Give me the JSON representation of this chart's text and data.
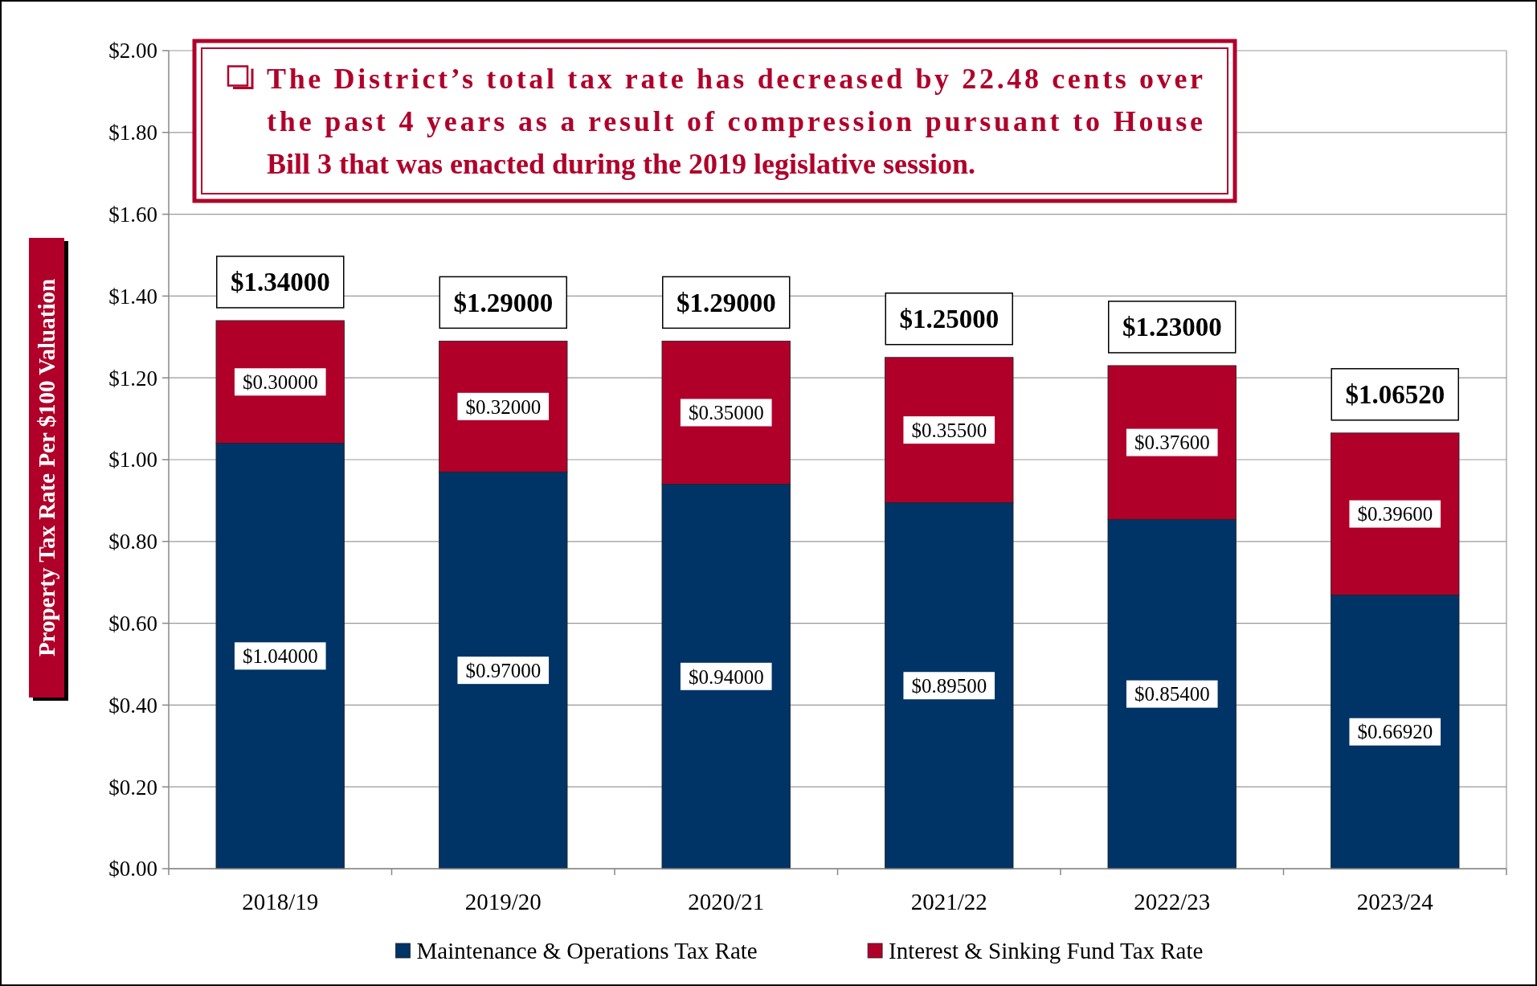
{
  "chart_data": {
    "type": "bar",
    "stacked": true,
    "title": "The District’s total tax rate has decreased by 22.48 cents over the past 4 years as a result of compression pursuant to House Bill 3 that was enacted during the 2019 legislative session.",
    "ylabel": "Property Tax Rate Per $100 Valuation",
    "categories": [
      "2018/19",
      "2019/20",
      "2020/21",
      "2021/22",
      "2022/23",
      "2023/24"
    ],
    "series": [
      {
        "name": "Maintenance & Operations Tax Rate",
        "color": "#003366",
        "values": [
          1.04,
          0.97,
          0.94,
          0.895,
          0.854,
          0.6692
        ],
        "value_labels": [
          "$1.04000",
          "$0.97000",
          "$0.94000",
          "$0.89500",
          "$0.85400",
          "$0.66920"
        ]
      },
      {
        "name": "Interest & Sinking Fund Tax Rate",
        "color": "#b0002a",
        "values": [
          0.3,
          0.32,
          0.35,
          0.355,
          0.376,
          0.396
        ],
        "value_labels": [
          "$0.30000",
          "$0.32000",
          "$0.35000",
          "$0.35500",
          "$0.37600",
          "$0.39600"
        ]
      }
    ],
    "totals": [
      "$1.34000",
      "$1.29000",
      "$1.29000",
      "$1.25000",
      "$1.23000",
      "$1.06520"
    ],
    "ylim": [
      0,
      2
    ],
    "yticks": [
      {
        "value": 0,
        "label": "$0.00"
      },
      {
        "value": 0.2,
        "label": "$0.20"
      },
      {
        "value": 0.4,
        "label": "$0.40"
      },
      {
        "value": 0.6,
        "label": "$0.60"
      },
      {
        "value": 0.8,
        "label": "$0.80"
      },
      {
        "value": 1,
        "label": "$1.00"
      },
      {
        "value": 1.2,
        "label": "$1.20"
      },
      {
        "value": 1.4,
        "label": "$1.40"
      },
      {
        "value": 1.6,
        "label": "$1.60"
      },
      {
        "value": 1.8,
        "label": "$1.80"
      },
      {
        "value": 2,
        "label": "$2.00"
      }
    ],
    "grid": "y",
    "legend": "bottom"
  }
}
